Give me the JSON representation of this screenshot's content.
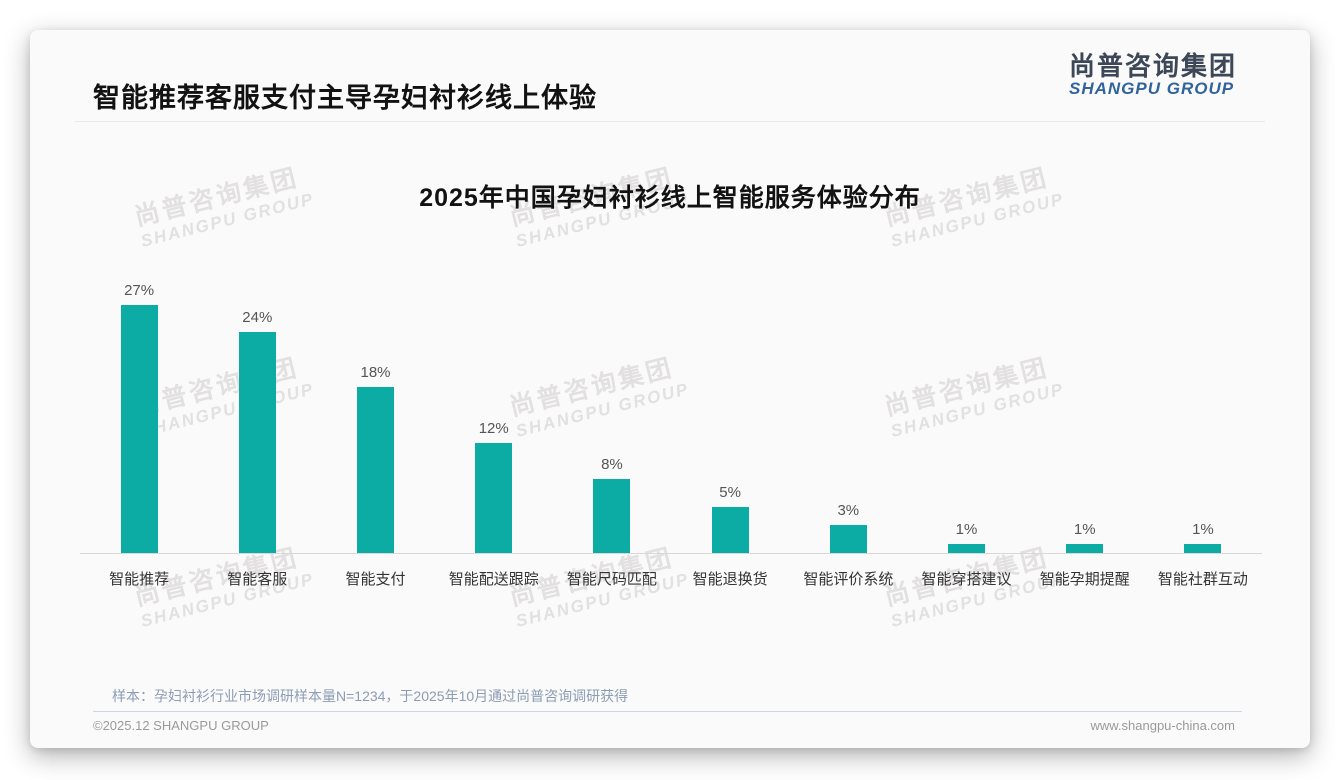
{
  "page": {
    "title": "智能推荐客服支付主导孕妇衬衫线上体验"
  },
  "logo": {
    "cn": "尚普咨询集团",
    "en": "SHANGPU GROUP"
  },
  "watermark": {
    "line1": "尚普咨询集团",
    "line2": "SHANGPU GROUP"
  },
  "chart_data": {
    "type": "bar",
    "title": "2025年中国孕妇衬衫线上智能服务体验分布",
    "categories": [
      "智能推荐",
      "智能客服",
      "智能支付",
      "智能配送跟踪",
      "智能尺码匹配",
      "智能退换货",
      "智能评价系统",
      "智能穿搭建议",
      "智能孕期提醒",
      "智能社群互动"
    ],
    "values": [
      27,
      24,
      18,
      12,
      8,
      5,
      3,
      1,
      1,
      1
    ],
    "value_labels": [
      "27%",
      "24%",
      "18%",
      "12%",
      "8%",
      "5%",
      "3%",
      "1%",
      "1%",
      "1%"
    ],
    "unit": "%",
    "xlabel": "",
    "ylabel": "",
    "ylim": [
      0,
      28
    ],
    "grid": false,
    "legend_position": "none",
    "bar_color": "#0caca4"
  },
  "footnote": "样本：孕妇衬衫行业市场调研样本量N=1234，于2025年10月通过尚普咨询调研获得",
  "footer": {
    "copyright": "©2025.12 SHANGPU GROUP",
    "website": "www.shangpu-china.com"
  },
  "colors": {
    "bar": "#0caca4",
    "logo_cn": "#3c4757",
    "logo_en": "#31639c",
    "footnote_text": "#8b9cb3",
    "axis_line": "#d8d8d8"
  }
}
